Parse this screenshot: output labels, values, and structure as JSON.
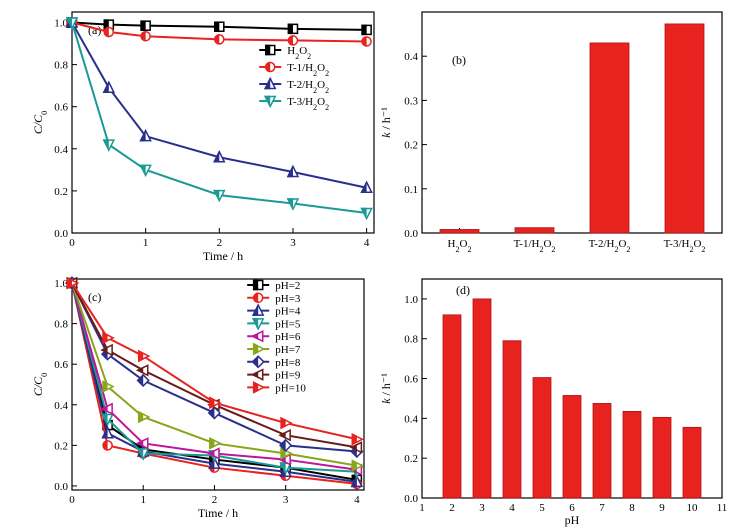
{
  "chart_data": [
    {
      "id": "a",
      "panel_label": "(a)",
      "type": "line",
      "xlabel": "Time / h",
      "ylabel": "C/C0",
      "xlim": [
        0,
        4.1
      ],
      "ylim": [
        0,
        1.05
      ],
      "xticks": [
        0,
        1,
        2,
        3,
        4
      ],
      "yticks": [
        0.0,
        0.2,
        0.4,
        0.6,
        0.8,
        1.0
      ],
      "legend_position": "right-middle",
      "x": [
        0,
        0.5,
        1,
        2,
        3,
        4
      ],
      "series": [
        {
          "name": "H2O2",
          "color": "#000000",
          "marker": "square",
          "values": [
            1.0,
            0.99,
            0.985,
            0.98,
            0.97,
            0.965
          ]
        },
        {
          "name": "T-1/H2O2",
          "color": "#e8221f",
          "marker": "circle",
          "values": [
            1.0,
            0.955,
            0.935,
            0.92,
            0.915,
            0.91
          ]
        },
        {
          "name": "T-2/H2O2",
          "color": "#2a2f8c",
          "marker": "triangle-up",
          "values": [
            1.0,
            0.69,
            0.46,
            0.36,
            0.29,
            0.215
          ]
        },
        {
          "name": "T-3/H2O2",
          "color": "#1a9a95",
          "marker": "triangle-down",
          "values": [
            1.0,
            0.42,
            0.3,
            0.18,
            0.14,
            0.095
          ]
        }
      ]
    },
    {
      "id": "b",
      "panel_label": "(b)",
      "type": "bar",
      "xlabel": "",
      "ylabel": "k / h⁻¹",
      "ylim": [
        0,
        0.5
      ],
      "yticks": [
        0.0,
        0.1,
        0.2,
        0.3,
        0.4
      ],
      "bar_color": "#e8221f",
      "categories": [
        "H2O2",
        "T-1/H2O2",
        "T-2/H2O2",
        "T-3/H2O2"
      ],
      "values": [
        0.008,
        0.012,
        0.43,
        0.473
      ]
    },
    {
      "id": "c",
      "panel_label": "(c)",
      "type": "line",
      "xlabel": "Time / h",
      "ylabel": "C/C0",
      "xlim": [
        0,
        4.1
      ],
      "ylim": [
        -0.02,
        1.02
      ],
      "xticks": [
        0,
        1,
        2,
        3,
        4
      ],
      "yticks": [
        0.0,
        0.2,
        0.4,
        0.6,
        0.8,
        1.0
      ],
      "legend_position": "upper-middle",
      "x": [
        0,
        0.5,
        1,
        2,
        3,
        4
      ],
      "series": [
        {
          "name": "pH=2",
          "color": "#000000",
          "marker": "half-square",
          "values": [
            1.0,
            0.3,
            0.18,
            0.13,
            0.09,
            0.03
          ]
        },
        {
          "name": "pH=3",
          "color": "#e8221f",
          "marker": "half-circle",
          "values": [
            1.0,
            0.2,
            0.16,
            0.09,
            0.05,
            0.01
          ]
        },
        {
          "name": "pH=4",
          "color": "#2a2f8c",
          "marker": "half-triangle-up",
          "values": [
            1.0,
            0.26,
            0.17,
            0.11,
            0.07,
            0.02
          ]
        },
        {
          "name": "pH=5",
          "color": "#1a9a95",
          "marker": "half-triangle-down",
          "values": [
            1.0,
            0.33,
            0.16,
            0.15,
            0.09,
            0.07
          ]
        },
        {
          "name": "pH=6",
          "color": "#c0149a",
          "marker": "half-triangle-left",
          "values": [
            1.0,
            0.38,
            0.21,
            0.16,
            0.13,
            0.08
          ]
        },
        {
          "name": "pH=7",
          "color": "#88a61a",
          "marker": "half-triangle-right",
          "values": [
            1.0,
            0.49,
            0.34,
            0.21,
            0.16,
            0.1
          ]
        },
        {
          "name": "pH=8",
          "color": "#2a2f8c",
          "marker": "half-diamond",
          "values": [
            1.0,
            0.65,
            0.52,
            0.36,
            0.2,
            0.17
          ]
        },
        {
          "name": "pH=9",
          "color": "#6b1a1a",
          "marker": "half-triangle-left",
          "values": [
            1.0,
            0.67,
            0.57,
            0.4,
            0.25,
            0.19
          ]
        },
        {
          "name": "pH=10",
          "color": "#e8221f",
          "marker": "half-triangle-right",
          "values": [
            1.0,
            0.73,
            0.64,
            0.41,
            0.31,
            0.23
          ]
        }
      ]
    },
    {
      "id": "d",
      "panel_label": "(d)",
      "type": "bar",
      "xlabel": "pH",
      "ylabel": "k / h⁻¹",
      "xlim": [
        1,
        11
      ],
      "ylim": [
        0,
        1.1
      ],
      "xticks": [
        1,
        2,
        3,
        4,
        5,
        6,
        7,
        8,
        9,
        10,
        11
      ],
      "yticks": [
        0.0,
        0.2,
        0.4,
        0.6,
        0.8,
        1.0
      ],
      "bar_color": "#e8221f",
      "categories": [
        2,
        3,
        4,
        5,
        6,
        7,
        8,
        9,
        10
      ],
      "values": [
        0.92,
        1.0,
        0.79,
        0.605,
        0.515,
        0.475,
        0.435,
        0.405,
        0.355
      ]
    }
  ]
}
